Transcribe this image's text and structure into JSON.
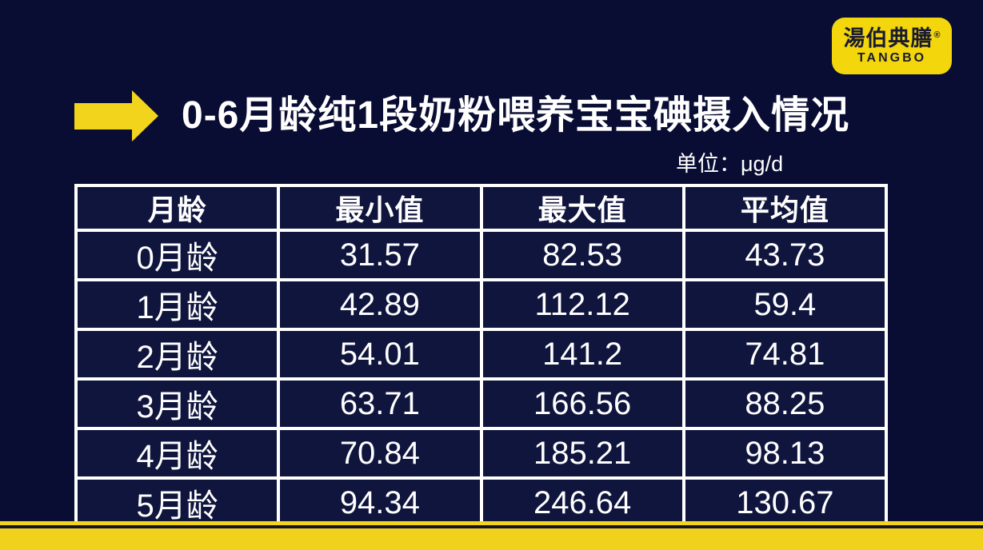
{
  "page": {
    "background_color": "#0A0D33",
    "accent_yellow": "#F2D41C",
    "table_cell_color": "#10153E",
    "text_color": "#FFFFFF"
  },
  "logo": {
    "name_cn": "湯伯典膳",
    "registered_mark": "®",
    "name_en": "TANGBO"
  },
  "header": {
    "title": "0-6月龄纯1段奶粉喂养宝宝碘摄入情况",
    "unit_label": "单位：μg/d"
  },
  "chart_data": {
    "type": "table",
    "title": "0-6月龄纯1段奶粉喂养宝宝碘摄入情况",
    "unit": "μg/d",
    "headers": [
      "月龄",
      "最小值",
      "最大值",
      "平均值"
    ],
    "rows": [
      [
        "0月龄",
        "31.57",
        "82.53",
        "43.73"
      ],
      [
        "1月龄",
        "42.89",
        "112.12",
        "59.4"
      ],
      [
        "2月龄",
        "54.01",
        "141.2",
        "74.81"
      ],
      [
        "3月龄",
        "63.71",
        "166.56",
        "88.25"
      ],
      [
        "4月龄",
        "70.84",
        "185.21",
        "98.13"
      ],
      [
        "5月龄",
        "94.34",
        "246.64",
        "130.67"
      ]
    ]
  }
}
